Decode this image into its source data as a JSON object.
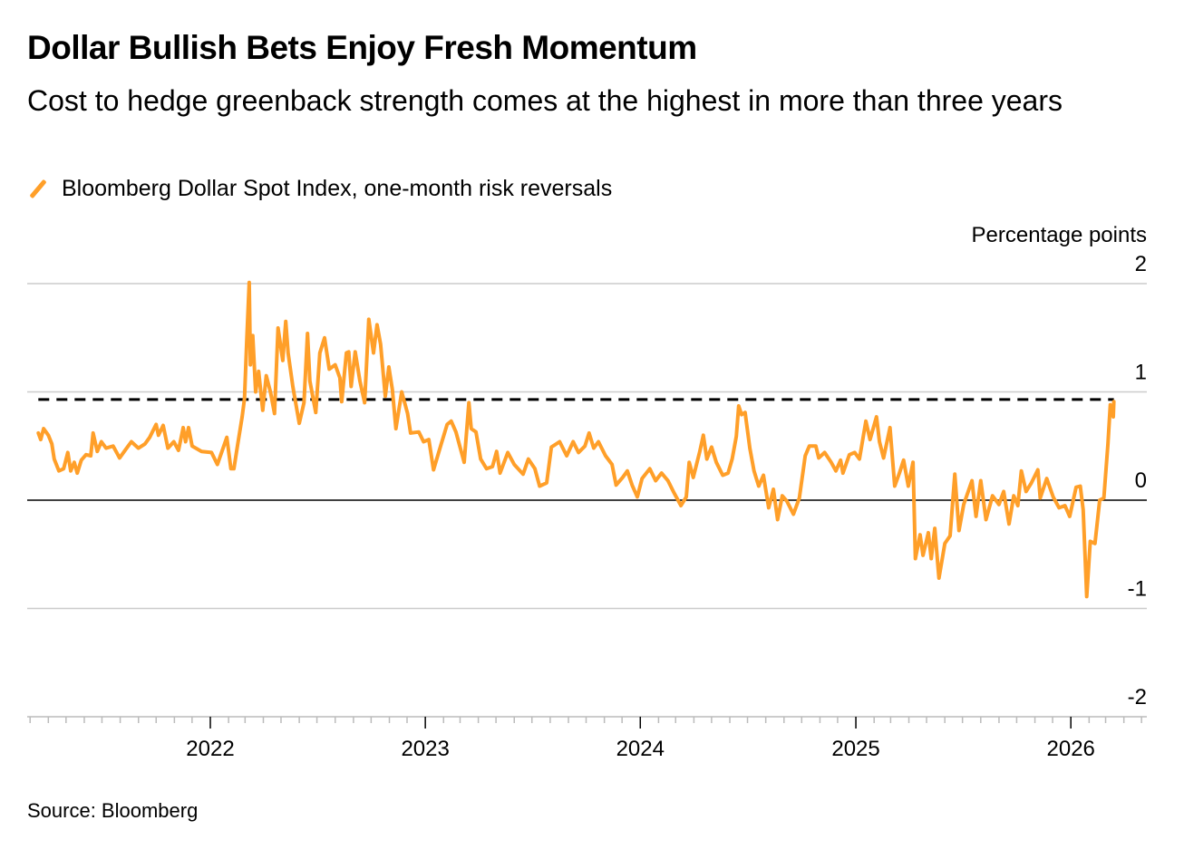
{
  "title": "Dollar Bullish Bets Enjoy Fresh Momentum",
  "subtitle": "Cost to hedge greenback strength comes at the highest in more than three years",
  "source": "Source: Bloomberg",
  "colors": {
    "series": "#ff9f29",
    "reference_line": "#000000",
    "zero_line": "#000000",
    "grid": "#cccccc"
  },
  "chart_data": {
    "type": "line",
    "title": "Dollar Bullish Bets Enjoy Fresh Momentum",
    "ylabel": "Percentage points",
    "xlabel": "",
    "ylim": [
      -2,
      2
    ],
    "yticks": [
      2,
      1,
      0,
      -1,
      -2
    ],
    "ytick_labels": [
      "2",
      "1",
      "0",
      "-1",
      "-2"
    ],
    "xticks": [
      "2022-01-01",
      "2023-01-01",
      "2024-01-01",
      "2025-01-01",
      "2026-01-01"
    ],
    "xtick_labels": [
      "2022",
      "2023",
      "2024",
      "2025",
      "2026"
    ],
    "grid": true,
    "legend": "top-left",
    "reference_line": {
      "value": 0.93,
      "style": "dashed",
      "from": "2021-03-15",
      "to": "2026-03-15"
    },
    "series": [
      {
        "name": "Bloomberg Dollar Spot Index, one-month risk reversals",
        "points": [
          [
            "2021-03-15",
            0.62
          ],
          [
            "2021-03-19",
            0.56
          ],
          [
            "2021-03-24",
            0.66
          ],
          [
            "2021-04-01",
            0.6
          ],
          [
            "2021-04-07",
            0.52
          ],
          [
            "2021-04-11",
            0.38
          ],
          [
            "2021-04-19",
            0.27
          ],
          [
            "2021-04-27",
            0.29
          ],
          [
            "2021-05-04",
            0.44
          ],
          [
            "2021-05-09",
            0.27
          ],
          [
            "2021-05-15",
            0.35
          ],
          [
            "2021-05-20",
            0.25
          ],
          [
            "2021-05-27",
            0.37
          ],
          [
            "2021-06-04",
            0.42
          ],
          [
            "2021-06-12",
            0.41
          ],
          [
            "2021-06-16",
            0.62
          ],
          [
            "2021-06-23",
            0.45
          ],
          [
            "2021-06-30",
            0.54
          ],
          [
            "2021-07-08",
            0.48
          ],
          [
            "2021-07-20",
            0.5
          ],
          [
            "2021-07-31",
            0.39
          ],
          [
            "2021-08-12",
            0.48
          ],
          [
            "2021-08-20",
            0.54
          ],
          [
            "2021-09-01",
            0.48
          ],
          [
            "2021-09-12",
            0.52
          ],
          [
            "2021-09-20",
            0.58
          ],
          [
            "2021-10-01",
            0.7
          ],
          [
            "2021-10-05",
            0.6
          ],
          [
            "2021-10-13",
            0.69
          ],
          [
            "2021-10-21",
            0.48
          ],
          [
            "2021-10-31",
            0.54
          ],
          [
            "2021-11-08",
            0.46
          ],
          [
            "2021-11-16",
            0.67
          ],
          [
            "2021-11-20",
            0.54
          ],
          [
            "2021-11-25",
            0.67
          ],
          [
            "2021-12-01",
            0.5
          ],
          [
            "2021-12-17",
            0.45
          ],
          [
            "2022-01-03",
            0.44
          ],
          [
            "2022-01-13",
            0.33
          ],
          [
            "2022-01-29",
            0.58
          ],
          [
            "2022-02-05",
            0.29
          ],
          [
            "2022-02-10",
            0.29
          ],
          [
            "2022-02-16",
            0.5
          ],
          [
            "2022-02-24",
            0.77
          ],
          [
            "2022-02-28",
            0.94
          ],
          [
            "2022-03-04",
            1.5
          ],
          [
            "2022-03-08",
            2.01
          ],
          [
            "2022-03-10",
            1.25
          ],
          [
            "2022-03-14",
            1.52
          ],
          [
            "2022-03-19",
            1.0
          ],
          [
            "2022-03-24",
            1.19
          ],
          [
            "2022-03-31",
            0.83
          ],
          [
            "2022-04-06",
            1.15
          ],
          [
            "2022-04-13",
            1.0
          ],
          [
            "2022-04-20",
            0.8
          ],
          [
            "2022-04-26",
            1.59
          ],
          [
            "2022-05-04",
            1.29
          ],
          [
            "2022-05-09",
            1.65
          ],
          [
            "2022-05-13",
            1.36
          ],
          [
            "2022-05-21",
            1.05
          ],
          [
            "2022-06-01",
            0.71
          ],
          [
            "2022-06-09",
            0.9
          ],
          [
            "2022-06-15",
            1.54
          ],
          [
            "2022-06-19",
            1.1
          ],
          [
            "2022-06-29",
            0.81
          ],
          [
            "2022-07-06",
            1.36
          ],
          [
            "2022-07-14",
            1.5
          ],
          [
            "2022-07-22",
            1.21
          ],
          [
            "2022-08-01",
            1.25
          ],
          [
            "2022-08-09",
            1.13
          ],
          [
            "2022-08-12",
            0.91
          ],
          [
            "2022-08-20",
            1.36
          ],
          [
            "2022-08-24",
            1.37
          ],
          [
            "2022-08-28",
            1.05
          ],
          [
            "2022-09-04",
            1.37
          ],
          [
            "2022-09-12",
            1.1
          ],
          [
            "2022-09-20",
            0.9
          ],
          [
            "2022-09-27",
            1.67
          ],
          [
            "2022-10-05",
            1.36
          ],
          [
            "2022-10-11",
            1.62
          ],
          [
            "2022-10-17",
            1.44
          ],
          [
            "2022-10-25",
            0.96
          ],
          [
            "2022-10-31",
            1.23
          ],
          [
            "2022-11-06",
            1.02
          ],
          [
            "2022-11-12",
            0.66
          ],
          [
            "2022-11-22",
            1.0
          ],
          [
            "2022-12-02",
            0.8
          ],
          [
            "2022-12-07",
            0.62
          ],
          [
            "2022-12-21",
            0.63
          ],
          [
            "2022-12-29",
            0.54
          ],
          [
            "2023-01-07",
            0.56
          ],
          [
            "2023-01-15",
            0.28
          ],
          [
            "2023-01-28",
            0.52
          ],
          [
            "2023-02-07",
            0.7
          ],
          [
            "2023-02-14",
            0.73
          ],
          [
            "2023-02-22",
            0.63
          ],
          [
            "2023-03-08",
            0.35
          ],
          [
            "2023-03-16",
            0.9
          ],
          [
            "2023-03-20",
            0.66
          ],
          [
            "2023-03-28",
            0.63
          ],
          [
            "2023-04-05",
            0.38
          ],
          [
            "2023-04-15",
            0.29
          ],
          [
            "2023-04-25",
            0.31
          ],
          [
            "2023-05-02",
            0.45
          ],
          [
            "2023-05-08",
            0.25
          ],
          [
            "2023-05-21",
            0.44
          ],
          [
            "2023-06-01",
            0.33
          ],
          [
            "2023-06-16",
            0.24
          ],
          [
            "2023-06-25",
            0.38
          ],
          [
            "2023-07-06",
            0.29
          ],
          [
            "2023-07-14",
            0.13
          ],
          [
            "2023-07-26",
            0.16
          ],
          [
            "2023-08-03",
            0.49
          ],
          [
            "2023-08-17",
            0.54
          ],
          [
            "2023-08-29",
            0.41
          ],
          [
            "2023-09-09",
            0.54
          ],
          [
            "2023-09-18",
            0.44
          ],
          [
            "2023-09-29",
            0.5
          ],
          [
            "2023-10-06",
            0.62
          ],
          [
            "2023-10-14",
            0.48
          ],
          [
            "2023-10-22",
            0.54
          ],
          [
            "2023-11-03",
            0.41
          ],
          [
            "2023-11-14",
            0.33
          ],
          [
            "2023-11-21",
            0.14
          ],
          [
            "2023-12-02",
            0.21
          ],
          [
            "2023-12-10",
            0.27
          ],
          [
            "2023-12-18",
            0.14
          ],
          [
            "2023-12-27",
            0.03
          ],
          [
            "2024-01-04",
            0.2
          ],
          [
            "2024-01-17",
            0.29
          ],
          [
            "2024-01-27",
            0.18
          ],
          [
            "2024-02-06",
            0.25
          ],
          [
            "2024-02-17",
            0.18
          ],
          [
            "2024-02-26",
            0.08
          ],
          [
            "2024-03-10",
            -0.05
          ],
          [
            "2024-03-19",
            0.03
          ],
          [
            "2024-03-24",
            0.35
          ],
          [
            "2024-03-31",
            0.21
          ],
          [
            "2024-04-11",
            0.45
          ],
          [
            "2024-04-17",
            0.6
          ],
          [
            "2024-04-23",
            0.38
          ],
          [
            "2024-05-01",
            0.49
          ],
          [
            "2024-05-09",
            0.35
          ],
          [
            "2024-05-20",
            0.23
          ],
          [
            "2024-05-29",
            0.25
          ],
          [
            "2024-06-05",
            0.38
          ],
          [
            "2024-06-12",
            0.59
          ],
          [
            "2024-06-16",
            0.87
          ],
          [
            "2024-06-21",
            0.79
          ],
          [
            "2024-06-27",
            0.81
          ],
          [
            "2024-07-05",
            0.48
          ],
          [
            "2024-07-12",
            0.27
          ],
          [
            "2024-07-20",
            0.13
          ],
          [
            "2024-07-28",
            0.23
          ],
          [
            "2024-08-06",
            -0.07
          ],
          [
            "2024-08-14",
            0.1
          ],
          [
            "2024-08-21",
            -0.18
          ],
          [
            "2024-08-29",
            0.04
          ],
          [
            "2024-09-06",
            -0.01
          ],
          [
            "2024-09-17",
            -0.13
          ],
          [
            "2024-09-27",
            0.02
          ],
          [
            "2024-10-07",
            0.41
          ],
          [
            "2024-10-14",
            0.5
          ],
          [
            "2024-10-25",
            0.5
          ],
          [
            "2024-10-30",
            0.39
          ],
          [
            "2024-11-09",
            0.44
          ],
          [
            "2024-11-20",
            0.35
          ],
          [
            "2024-11-28",
            0.27
          ],
          [
            "2024-12-06",
            0.37
          ],
          [
            "2024-12-10",
            0.25
          ],
          [
            "2024-12-21",
            0.42
          ],
          [
            "2024-12-30",
            0.44
          ],
          [
            "2025-01-07",
            0.38
          ],
          [
            "2025-01-18",
            0.73
          ],
          [
            "2025-01-25",
            0.56
          ],
          [
            "2025-02-05",
            0.77
          ],
          [
            "2025-02-10",
            0.54
          ],
          [
            "2025-02-17",
            0.39
          ],
          [
            "2025-02-28",
            0.67
          ],
          [
            "2025-03-08",
            0.13
          ],
          [
            "2025-03-16",
            0.25
          ],
          [
            "2025-03-23",
            0.37
          ],
          [
            "2025-03-31",
            0.13
          ],
          [
            "2025-04-08",
            0.35
          ],
          [
            "2025-04-12",
            -0.54
          ],
          [
            "2025-04-20",
            -0.32
          ],
          [
            "2025-04-25",
            -0.51
          ],
          [
            "2025-05-04",
            -0.3
          ],
          [
            "2025-05-09",
            -0.54
          ],
          [
            "2025-05-15",
            -0.26
          ],
          [
            "2025-05-22",
            -0.72
          ],
          [
            "2025-06-01",
            -0.4
          ],
          [
            "2025-06-10",
            -0.33
          ],
          [
            "2025-06-18",
            0.24
          ],
          [
            "2025-06-25",
            -0.28
          ],
          [
            "2025-07-03",
            -0.04
          ],
          [
            "2025-07-17",
            0.18
          ],
          [
            "2025-07-24",
            -0.15
          ],
          [
            "2025-08-01",
            0.18
          ],
          [
            "2025-08-10",
            -0.18
          ],
          [
            "2025-08-21",
            0.04
          ],
          [
            "2025-09-01",
            -0.04
          ],
          [
            "2025-09-09",
            0.08
          ],
          [
            "2025-09-18",
            -0.22
          ],
          [
            "2025-09-26",
            0.04
          ],
          [
            "2025-10-03",
            -0.05
          ],
          [
            "2025-10-09",
            0.27
          ],
          [
            "2025-10-17",
            0.08
          ],
          [
            "2025-10-26",
            0.16
          ],
          [
            "2025-11-06",
            0.28
          ],
          [
            "2025-11-10",
            0.02
          ],
          [
            "2025-11-21",
            0.2
          ],
          [
            "2025-12-02",
            0.03
          ],
          [
            "2025-12-12",
            -0.07
          ],
          [
            "2025-12-22",
            -0.05
          ],
          [
            "2025-12-30",
            -0.15
          ],
          [
            "2026-01-10",
            0.12
          ],
          [
            "2026-01-17",
            0.13
          ],
          [
            "2026-01-22",
            -0.09
          ],
          [
            "2026-01-28",
            -0.89
          ],
          [
            "2026-02-03",
            -0.38
          ],
          [
            "2026-02-11",
            -0.4
          ],
          [
            "2026-02-19",
            0.0
          ],
          [
            "2026-02-26",
            0.02
          ],
          [
            "2026-03-05",
            0.52
          ],
          [
            "2026-03-09",
            0.88
          ],
          [
            "2026-03-14",
            0.77
          ],
          [
            "2026-03-15",
            0.91
          ]
        ]
      }
    ]
  }
}
